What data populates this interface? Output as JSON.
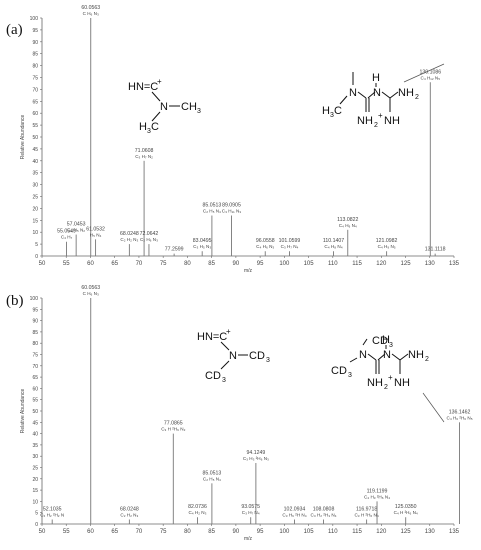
{
  "chart_data": [
    {
      "type": "bar",
      "panel_label": "(a)",
      "xlabel": "m/z",
      "ylabel": "Relative Abundance",
      "xlim": [
        50,
        135
      ],
      "ylim": [
        0,
        100
      ],
      "x_ticks": [
        "50",
        "55",
        "60",
        "65",
        "70",
        "75",
        "80",
        "85",
        "90",
        "95",
        "100",
        "105",
        "110",
        "115",
        "120",
        "125",
        "130",
        "135"
      ],
      "y_ticks": [
        "0",
        "5",
        "10",
        "15",
        "20",
        "25",
        "30",
        "35",
        "40",
        "45",
        "50",
        "55",
        "60",
        "65",
        "70",
        "75",
        "80",
        "85",
        "90",
        "95",
        "100"
      ],
      "peaks": [
        {
          "mz": 55.0549,
          "intensity": 6,
          "mz_label": "55.0549",
          "formula": "C₄ H₇"
        },
        {
          "mz": 57.0453,
          "intensity": 9,
          "mz_label": "57.0453",
          "formula": "C₂ H₅ N₂"
        },
        {
          "mz": 60.0563,
          "intensity": 100,
          "mz_label": "60.0563",
          "formula": "C H₆ N₃"
        },
        {
          "mz": 61.0532,
          "intensity": 7,
          "mz_label": "61.0532",
          "formula": "H₅ N₄"
        },
        {
          "mz": 68.0248,
          "intensity": 5,
          "mz_label": "68.0248",
          "formula": "C₂ H₂ N₃"
        },
        {
          "mz": 71.0608,
          "intensity": 40,
          "mz_label": "71.0608",
          "formula": "C₃ H₇ N₂"
        },
        {
          "mz": 72.0642,
          "intensity": 5,
          "mz_label": "72.0642",
          "formula": "C₂ H₆ N₃"
        },
        {
          "mz": 77.2599,
          "intensity": 1,
          "mz_label": "77.2599",
          "formula": ""
        },
        {
          "mz": 83.0495,
          "intensity": 2,
          "mz_label": "83.0495",
          "formula": "C₃ H₅ N₃"
        },
        {
          "mz": 85.0513,
          "intensity": 17,
          "mz_label": "85.0513",
          "formula": "C₂ H₅ N₄"
        },
        {
          "mz": 89.0905,
          "intensity": 17,
          "mz_label": "89.0905",
          "formula": "C₃ H₁₁ N₃"
        },
        {
          "mz": 96.0558,
          "intensity": 2,
          "mz_label": "96.0558",
          "formula": "C₄ H₆ N₃"
        },
        {
          "mz": 101.0599,
          "intensity": 2,
          "mz_label": "101.0599",
          "formula": "C₃ H₇ N₄"
        },
        {
          "mz": 110.1407,
          "intensity": 2,
          "mz_label": "110.1407",
          "formula": "C₄ H₈ N₄"
        },
        {
          "mz": 113.0822,
          "intensity": 11,
          "mz_label": "113.0822",
          "formula": "C₄ H₉ N₄"
        },
        {
          "mz": 121.0982,
          "intensity": 2,
          "mz_label": "121.0982",
          "formula": "C₄ H₉ N₅"
        },
        {
          "mz": 130.1086,
          "intensity": 73,
          "mz_label": "130.1086",
          "formula": "C₄ H₁₂ N₅"
        },
        {
          "mz": 131.1118,
          "intensity": 1,
          "mz_label": "131.1118",
          "formula": ""
        }
      ]
    },
    {
      "type": "bar",
      "panel_label": "(b)",
      "xlabel": "m/z",
      "ylabel": "Relative Abundance",
      "xlim": [
        50,
        135
      ],
      "ylim": [
        0,
        100
      ],
      "x_ticks": [
        "50",
        "55",
        "60",
        "65",
        "70",
        "75",
        "80",
        "85",
        "90",
        "95",
        "100",
        "105",
        "110",
        "115",
        "120",
        "125",
        "130",
        "135"
      ],
      "y_ticks": [
        "0",
        "5",
        "10",
        "15",
        "20",
        "25",
        "30",
        "35",
        "40",
        "45",
        "50",
        "55",
        "60",
        "65",
        "70",
        "75",
        "80",
        "85",
        "90",
        "95",
        "100"
      ],
      "peaks": [
        {
          "mz": 52.1035,
          "intensity": 2,
          "mz_label": "52.1035",
          "formula": "C₂ H₂ ²H₂ N"
        },
        {
          "mz": 60.0563,
          "intensity": 100,
          "mz_label": "60.0563",
          "formula": "C H₆ N₃"
        },
        {
          "mz": 68.0248,
          "intensity": 2,
          "mz_label": "68.0248",
          "formula": "C₂ H₂ N₃"
        },
        {
          "mz": 77.0865,
          "intensity": 40,
          "mz_label": "77.0865",
          "formula": "C₃ H ²H₆ N₂"
        },
        {
          "mz": 82.0736,
          "intensity": 3,
          "mz_label": "82.0736",
          "formula": "C₄ H₂ N₃"
        },
        {
          "mz": 85.0513,
          "intensity": 18,
          "mz_label": "85.0513",
          "formula": "C₂ H₅ N₄"
        },
        {
          "mz": 93.0575,
          "intensity": 3,
          "mz_label": "93.0575",
          "formula": "C₃ H₇ N₄"
        },
        {
          "mz": 94.1249,
          "intensity": 27,
          "mz_label": "94.1249",
          "formula": "C₃ H₃ ²H₆ N₃"
        },
        {
          "mz": 102.0934,
          "intensity": 2,
          "mz_label": "102.0934",
          "formula": "C₃ H₆ ²H N₄"
        },
        {
          "mz": 108.0808,
          "intensity": 2,
          "mz_label": "108.0808",
          "formula": "C₃ H₂ ²H₃ N₄"
        },
        {
          "mz": 116.9718,
          "intensity": 2,
          "mz_label": "116.9718",
          "formula": "C₃ H ²H₆ N₄"
        },
        {
          "mz": 119.1199,
          "intensity": 10,
          "mz_label": "119.1199",
          "formula": "C₄ H₃ ²H₆ N₄"
        },
        {
          "mz": 125.035,
          "intensity": 3,
          "mz_label": "125.0350",
          "formula": "C₄ H ²H₆ N₄"
        },
        {
          "mz": 136.1462,
          "intensity": 45,
          "mz_label": "136.1462",
          "formula": "C₄ H₆ ²H₆ N₅"
        }
      ]
    }
  ],
  "structures": {
    "a_fragment": {
      "top": "HN=C",
      "top_charge": "+",
      "n_left": "N",
      "ch3_right": "CH",
      "ch3_right_sub": "3",
      "h3c": "H",
      "h3c_sub": "3",
      "h3c_c": "C"
    },
    "a_molecule": {
      "h": "H",
      "n1": "N",
      "n2": "N",
      "nh2": "NH",
      "nh2_sub": "2",
      "h3c": "H",
      "h3c_sub": "3",
      "h3c_c": "C",
      "nh2p": "NH",
      "nh2p_sub": "2",
      "nh2p_charge": "+",
      "nh": "NH"
    },
    "b_fragment": {
      "top": "HN=C",
      "top_charge": "+",
      "n_left": "N",
      "cd3_right": "CD",
      "cd3_right_sub": "3",
      "cd3_left": "CD",
      "cd3_left_sub": "3"
    },
    "b_molecule": {
      "cd3_top": "CD",
      "cd3_top_sub": "3",
      "cd3_left": "CD",
      "cd3_left_sub": "3",
      "h": "H",
      "n1": "N",
      "n2": "N",
      "nh2": "NH",
      "nh2_sub": "2",
      "nh2p": "NH",
      "nh2p_sub": "2",
      "nh2p_charge": "+",
      "nh": "NH"
    }
  }
}
